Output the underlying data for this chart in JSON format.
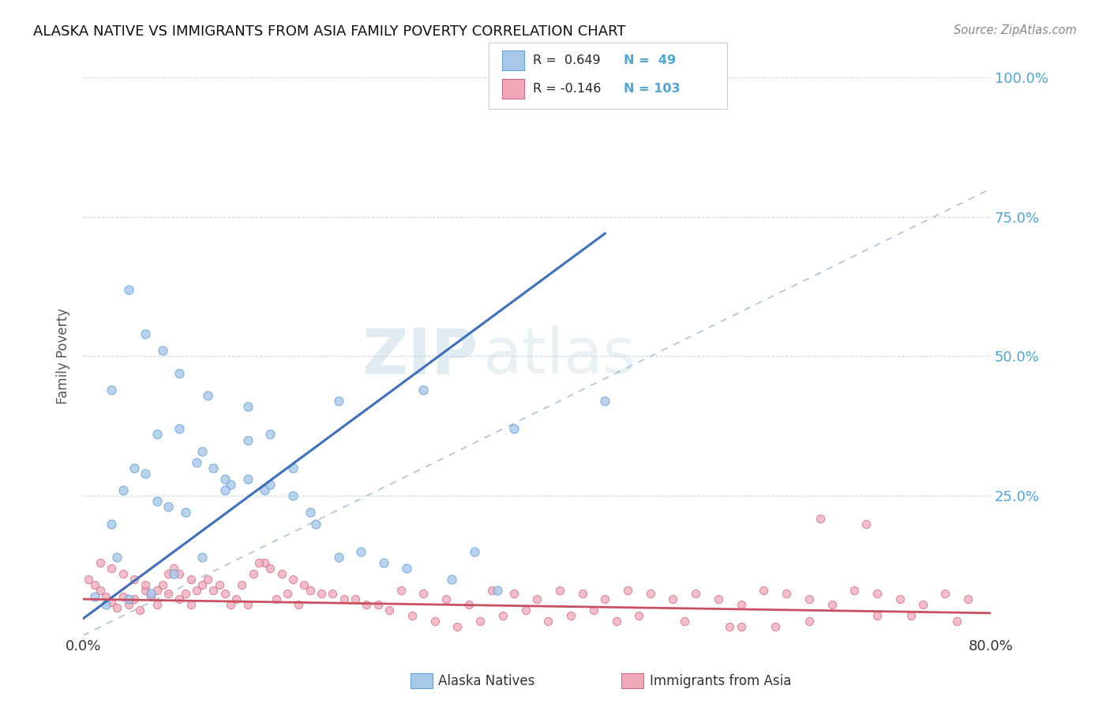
{
  "title": "ALASKA NATIVE VS IMMIGRANTS FROM ASIA FAMILY POVERTY CORRELATION CHART",
  "source": "Source: ZipAtlas.com",
  "ylabel": "Family Poverty",
  "xlim": [
    0,
    0.8
  ],
  "ylim": [
    0,
    1.0
  ],
  "ytick_positions": [
    0.0,
    0.25,
    0.5,
    0.75,
    1.0
  ],
  "ytick_labels": [
    "",
    "25.0%",
    "50.0%",
    "75.0%",
    "100.0%"
  ],
  "background_color": "#ffffff",
  "watermark_zip": "ZIP",
  "watermark_atlas": "atlas",
  "color_blue_fill": "#a8c8e8",
  "color_blue_edge": "#5b9bd5",
  "color_blue_line": "#3d6fbb",
  "color_pink_fill": "#f0a8b8",
  "color_pink_edge": "#d06080",
  "color_pink_line": "#c85060",
  "color_diagonal": "#a0b8cc",
  "blue_line_x0": 0.0,
  "blue_line_y0": 0.03,
  "blue_line_x1": 0.46,
  "blue_line_y1": 0.72,
  "pink_line_x0": 0.0,
  "pink_line_y0": 0.065,
  "pink_line_x1": 0.8,
  "pink_line_y1": 0.04,
  "alaska_x": [
    0.025,
    0.04,
    0.055,
    0.07,
    0.085,
    0.1,
    0.115,
    0.13,
    0.145,
    0.16,
    0.025,
    0.045,
    0.065,
    0.085,
    0.105,
    0.125,
    0.145,
    0.165,
    0.185,
    0.2,
    0.03,
    0.065,
    0.09,
    0.11,
    0.145,
    0.185,
    0.225,
    0.3,
    0.38,
    0.46,
    0.035,
    0.055,
    0.075,
    0.125,
    0.165,
    0.205,
    0.245,
    0.285,
    0.325,
    0.365,
    0.01,
    0.02,
    0.04,
    0.06,
    0.08,
    0.105,
    0.225,
    0.265,
    0.345
  ],
  "alaska_y": [
    0.44,
    0.62,
    0.54,
    0.51,
    0.47,
    0.31,
    0.3,
    0.27,
    0.28,
    0.26,
    0.2,
    0.3,
    0.36,
    0.37,
    0.33,
    0.28,
    0.41,
    0.36,
    0.25,
    0.22,
    0.14,
    0.24,
    0.22,
    0.43,
    0.35,
    0.3,
    0.42,
    0.44,
    0.37,
    0.42,
    0.26,
    0.29,
    0.23,
    0.26,
    0.27,
    0.2,
    0.15,
    0.12,
    0.1,
    0.08,
    0.07,
    0.055,
    0.065,
    0.075,
    0.11,
    0.14,
    0.14,
    0.13,
    0.15
  ],
  "asia_x": [
    0.005,
    0.01,
    0.015,
    0.02,
    0.025,
    0.03,
    0.035,
    0.04,
    0.045,
    0.05,
    0.055,
    0.06,
    0.065,
    0.07,
    0.075,
    0.08,
    0.085,
    0.09,
    0.095,
    0.1,
    0.11,
    0.12,
    0.13,
    0.14,
    0.15,
    0.16,
    0.17,
    0.18,
    0.19,
    0.2,
    0.22,
    0.24,
    0.26,
    0.28,
    0.3,
    0.32,
    0.34,
    0.36,
    0.38,
    0.4,
    0.42,
    0.44,
    0.46,
    0.48,
    0.5,
    0.52,
    0.54,
    0.56,
    0.58,
    0.6,
    0.62,
    0.64,
    0.66,
    0.68,
    0.7,
    0.72,
    0.74,
    0.76,
    0.78,
    0.015,
    0.025,
    0.035,
    0.045,
    0.055,
    0.065,
    0.075,
    0.085,
    0.095,
    0.105,
    0.115,
    0.125,
    0.135,
    0.145,
    0.155,
    0.165,
    0.175,
    0.185,
    0.195,
    0.21,
    0.23,
    0.25,
    0.27,
    0.29,
    0.31,
    0.33,
    0.35,
    0.37,
    0.39,
    0.41,
    0.43,
    0.45,
    0.47,
    0.49,
    0.53,
    0.57,
    0.61,
    0.65,
    0.69,
    0.73,
    0.77,
    0.58,
    0.64,
    0.7
  ],
  "asia_y": [
    0.1,
    0.09,
    0.08,
    0.07,
    0.06,
    0.05,
    0.07,
    0.055,
    0.065,
    0.045,
    0.08,
    0.07,
    0.055,
    0.09,
    0.11,
    0.12,
    0.065,
    0.075,
    0.055,
    0.08,
    0.1,
    0.09,
    0.055,
    0.09,
    0.11,
    0.13,
    0.065,
    0.075,
    0.055,
    0.08,
    0.075,
    0.065,
    0.055,
    0.08,
    0.075,
    0.065,
    0.055,
    0.08,
    0.075,
    0.065,
    0.08,
    0.075,
    0.065,
    0.08,
    0.075,
    0.065,
    0.075,
    0.065,
    0.055,
    0.08,
    0.075,
    0.065,
    0.055,
    0.08,
    0.075,
    0.065,
    0.055,
    0.075,
    0.065,
    0.13,
    0.12,
    0.11,
    0.1,
    0.09,
    0.08,
    0.075,
    0.11,
    0.1,
    0.09,
    0.08,
    0.075,
    0.065,
    0.055,
    0.13,
    0.12,
    0.11,
    0.1,
    0.09,
    0.075,
    0.065,
    0.055,
    0.045,
    0.035,
    0.025,
    0.015,
    0.025,
    0.035,
    0.045,
    0.025,
    0.035,
    0.045,
    0.025,
    0.035,
    0.025,
    0.015,
    0.015,
    0.21,
    0.2,
    0.035,
    0.025,
    0.015,
    0.025,
    0.035
  ]
}
